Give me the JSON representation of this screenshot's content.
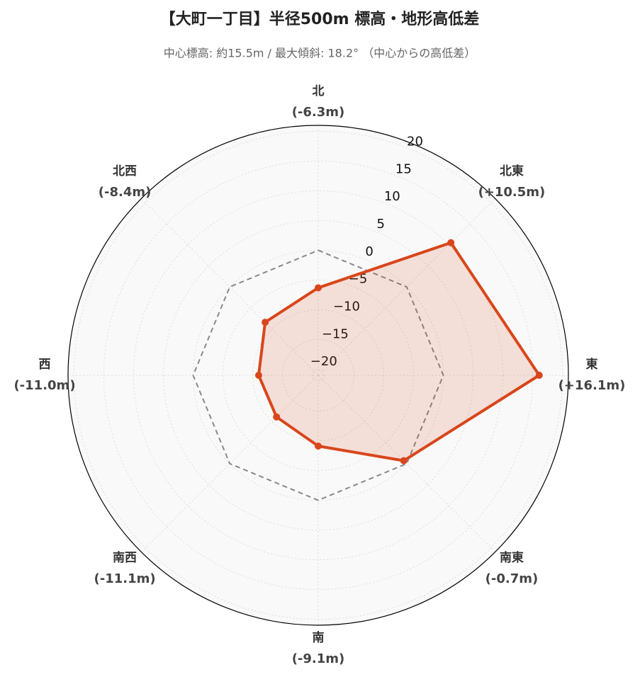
{
  "chart_data": {
    "type": "radar",
    "title": "【大町一丁目】半径500m 標高・地形高低差",
    "subtitle": "中心標高: 約15.5m / 最大傾斜: 18.2° （中心からの高低差）",
    "categories": [
      "北",
      "北東",
      "東",
      "南東",
      "南",
      "南西",
      "西",
      "北西"
    ],
    "series": [
      {
        "color": "#d9461b",
        "values": [
          -6.3,
          10.5,
          16.1,
          -0.7,
          -9.1,
          -11.1,
          -11.0,
          -8.4
        ],
        "value_labels": [
          "(-6.3m)",
          "(+10.5m)",
          "(+16.1m)",
          "(-0.7m)",
          "(-9.1m)",
          "(-11.1m)",
          "(-11.0m)",
          "(-8.4m)"
        ]
      }
    ],
    "ylim": [
      -21,
      21
    ],
    "yticks": [
      {
        "value": -20,
        "label": "−20"
      },
      {
        "value": -15,
        "label": "−15"
      },
      {
        "value": -10,
        "label": "−10"
      },
      {
        "value": -5,
        "label": "−5"
      },
      0,
      5,
      10,
      15,
      20
    ],
    "grid": true
  }
}
